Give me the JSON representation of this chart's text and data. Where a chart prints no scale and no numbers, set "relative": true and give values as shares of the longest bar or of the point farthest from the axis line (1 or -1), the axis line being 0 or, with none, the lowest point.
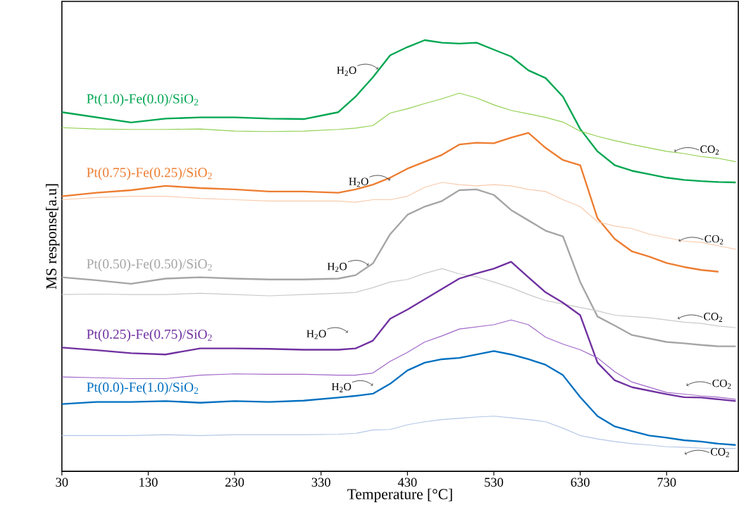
{
  "chart_data": {
    "type": "line",
    "relative": true,
    "xlabel": "Temperature [°C]",
    "ylabel": "MS response[a.u]",
    "xlim": [
      30,
      813
    ],
    "xticks": [
      30,
      130,
      230,
      330,
      430,
      530,
      630,
      730
    ],
    "marker": "none",
    "line_style": "solid",
    "x": [
      30,
      70,
      110,
      150,
      190,
      230,
      270,
      310,
      350,
      370,
      390,
      410,
      430,
      450,
      470,
      490,
      510,
      530,
      550,
      570,
      590,
      610,
      630,
      650,
      670,
      690,
      710,
      730,
      750,
      770,
      790,
      810
    ],
    "series": [
      {
        "name": "Pt(1.0)-Fe(0.0)/SiO$_{2}$",
        "color": "#00a651",
        "values": [
          0.833,
          0.821,
          0.809,
          0.818,
          0.821,
          0.821,
          0.818,
          0.817,
          0.833,
          0.869,
          0.914,
          0.965,
          0.984,
          1.0,
          0.994,
          0.992,
          0.994,
          0.978,
          0.962,
          0.93,
          0.912,
          0.869,
          0.794,
          0.742,
          0.71,
          0.697,
          0.689,
          0.681,
          0.676,
          0.673,
          0.671,
          0.67
        ]
      },
      {
        "color": "#92d050",
        "values": [
          0.797,
          0.794,
          0.793,
          0.793,
          0.794,
          0.789,
          0.788,
          0.789,
          0.793,
          0.796,
          0.802,
          0.831,
          0.841,
          0.853,
          0.864,
          0.877,
          0.866,
          0.85,
          0.837,
          0.829,
          0.821,
          0.81,
          0.789,
          0.777,
          0.767,
          0.758,
          0.75,
          0.742,
          0.737,
          0.73,
          0.726,
          0.718
        ]
      },
      {
        "name": "Pt(0.75)-Fe(0.25)/SiO$_{2}$",
        "color": "#ed7d31",
        "values": [
          0.638,
          0.646,
          0.652,
          0.662,
          0.657,
          0.654,
          0.649,
          0.649,
          0.646,
          0.654,
          0.665,
          0.681,
          0.702,
          0.718,
          0.734,
          0.758,
          0.762,
          0.761,
          0.774,
          0.785,
          0.75,
          0.722,
          0.71,
          0.587,
          0.539,
          0.51,
          0.498,
          0.483,
          0.474,
          0.467,
          0.463,
          null
        ]
      },
      {
        "color": "#f8cbad",
        "values": [
          0.63,
          0.635,
          0.638,
          0.638,
          0.633,
          0.63,
          0.627,
          0.627,
          0.627,
          0.624,
          0.63,
          0.63,
          0.638,
          0.659,
          0.67,
          0.665,
          0.662,
          0.665,
          0.662,
          0.654,
          0.649,
          0.63,
          0.614,
          0.579,
          0.569,
          0.563,
          0.55,
          0.542,
          0.534,
          0.531,
          0.523,
          0.515
        ]
      },
      {
        "name": "Pt(0.50)-Fe(0.50)/SiO$_{2}$",
        "color": "#a5a5a5",
        "values": [
          0.45,
          0.443,
          0.435,
          0.447,
          0.45,
          0.447,
          0.445,
          0.445,
          0.447,
          0.455,
          0.482,
          0.55,
          0.595,
          0.614,
          0.627,
          0.652,
          0.654,
          0.641,
          0.606,
          0.582,
          0.558,
          0.545,
          0.439,
          0.359,
          0.338,
          0.316,
          0.308,
          0.3,
          0.297,
          0.293,
          0.29,
          0.29
        ]
      },
      {
        "color": "#c9c9c9",
        "values": [
          0.41,
          0.411,
          0.41,
          0.41,
          0.413,
          0.41,
          0.407,
          0.41,
          0.413,
          0.415,
          0.426,
          0.439,
          0.445,
          0.459,
          0.47,
          0.458,
          0.451,
          0.439,
          0.426,
          0.41,
          0.396,
          0.388,
          0.38,
          0.372,
          0.362,
          0.359,
          0.356,
          0.351,
          0.346,
          0.343,
          0.337,
          0.333
        ]
      },
      {
        "name": "Pt(0.25)-Fe(0.75)/SiO$_{2}$",
        "color": "#7030a0",
        "values": [
          0.287,
          0.281,
          0.274,
          0.271,
          0.285,
          0.285,
          0.284,
          0.282,
          0.282,
          0.285,
          0.303,
          0.354,
          0.375,
          0.399,
          0.423,
          0.447,
          0.459,
          0.47,
          0.486,
          0.45,
          0.415,
          0.391,
          0.362,
          0.252,
          0.211,
          0.195,
          0.187,
          0.179,
          0.172,
          0.171,
          0.167,
          0.163
        ]
      },
      {
        "color": "#a066c8",
        "values": [
          0.219,
          0.217,
          0.215,
          0.215,
          0.223,
          0.226,
          0.225,
          0.225,
          0.223,
          0.223,
          0.228,
          0.255,
          0.276,
          0.3,
          0.314,
          0.33,
          0.335,
          0.34,
          0.351,
          0.34,
          0.311,
          0.295,
          0.282,
          0.263,
          0.231,
          0.207,
          0.195,
          0.183,
          0.179,
          0.175,
          0.172,
          0.167
        ]
      },
      {
        "name": "Pt(0.0)-Fe(1.0)/SiO$_{2}$",
        "color": "#0070c0",
        "values": [
          0.156,
          0.161,
          0.161,
          0.163,
          0.159,
          0.163,
          0.161,
          0.164,
          0.171,
          0.175,
          0.18,
          0.203,
          0.234,
          0.252,
          0.26,
          0.263,
          0.271,
          0.279,
          0.271,
          0.26,
          0.247,
          0.223,
          0.172,
          0.128,
          0.104,
          0.093,
          0.083,
          0.078,
          0.072,
          0.069,
          0.064,
          0.061
        ]
      },
      {
        "color": "#b4c7e7",
        "values": [
          0.083,
          0.083,
          0.083,
          0.085,
          0.083,
          0.085,
          0.085,
          0.085,
          0.086,
          0.088,
          0.096,
          0.097,
          0.108,
          0.115,
          0.12,
          0.123,
          0.126,
          0.128,
          0.124,
          0.12,
          0.115,
          0.1,
          0.083,
          0.075,
          0.069,
          0.064,
          0.061,
          0.057,
          0.056,
          0.054,
          0.053,
          0.053
        ]
      }
    ],
    "annotations": [
      {
        "text": "H$_{2}$O",
        "x": 396,
        "y": 0.933
      },
      {
        "text": "H$_{2}$O",
        "x": 410,
        "y": 0.675
      },
      {
        "text": "H$_{2}$O",
        "x": 385,
        "y": 0.478
      },
      {
        "text": "H$_{2}$O",
        "x": 361,
        "y": 0.322
      },
      {
        "text": "H$_{2}$O",
        "x": 390,
        "y": 0.199
      },
      {
        "text": "CO$_{2}$",
        "x": 739,
        "y": 0.742
      },
      {
        "text": "CO$_{2}$",
        "x": 744,
        "y": 0.534
      },
      {
        "text": "CO$_{2}$",
        "x": 743,
        "y": 0.354
      },
      {
        "text": "CO$_{2}$",
        "x": 753,
        "y": 0.199
      },
      {
        "text": "CO$_{2}$",
        "x": 751,
        "y": 0.04
      }
    ]
  }
}
